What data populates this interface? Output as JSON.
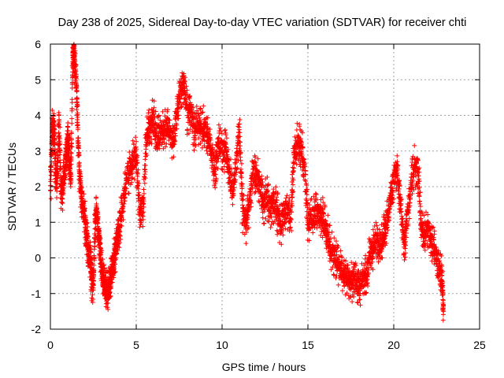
{
  "chart_data": {
    "type": "scatter",
    "title": "Day 238 of 2025, Sidereal Day-to-day VTEC variation (SDTVAR) for receiver chti",
    "xlabel": "GPS time / hours",
    "ylabel": "SDTVAR / TECUs",
    "xlim": [
      0,
      25
    ],
    "ylim": [
      -2,
      6
    ],
    "xticks": [
      "0",
      "5",
      "10",
      "15",
      "20",
      "25"
    ],
    "yticks": [
      "-2",
      "-1",
      "0",
      "1",
      "2",
      "3",
      "4",
      "5",
      "6"
    ],
    "grid": true,
    "marker": "+",
    "series": [
      {
        "name": "SDTVAR",
        "color": "#ff0000",
        "x": [
          0.0,
          0.1,
          0.15,
          0.2,
          0.3,
          0.4,
          0.5,
          0.6,
          0.7,
          0.8,
          0.9,
          1.0,
          1.05,
          1.1,
          1.2,
          1.3,
          1.35,
          1.4,
          1.5,
          1.6,
          1.7,
          1.8,
          1.9,
          2.0,
          2.1,
          2.2,
          2.3,
          2.4,
          2.5,
          2.6,
          2.7,
          2.8,
          2.9,
          3.0,
          3.1,
          3.2,
          3.3,
          3.4,
          3.5,
          3.6,
          3.7,
          3.8,
          3.9,
          4.0,
          4.2,
          4.4,
          4.6,
          4.8,
          5.0,
          5.2,
          5.4,
          5.6,
          5.8,
          6.0,
          6.2,
          6.4,
          6.6,
          6.8,
          7.0,
          7.2,
          7.4,
          7.6,
          7.8,
          8.0,
          8.2,
          8.4,
          8.6,
          8.8,
          9.0,
          9.2,
          9.4,
          9.6,
          9.8,
          10.0,
          10.2,
          10.4,
          10.6,
          10.8,
          11.0,
          11.2,
          11.4,
          11.6,
          11.8,
          12.0,
          12.2,
          12.4,
          12.6,
          12.8,
          13.0,
          13.2,
          13.4,
          13.6,
          13.8,
          14.0,
          14.2,
          14.4,
          14.6,
          14.8,
          15.0,
          15.2,
          15.4,
          15.6,
          15.8,
          16.0,
          16.2,
          16.4,
          16.6,
          16.8,
          17.0,
          17.2,
          17.4,
          17.6,
          17.8,
          18.0,
          18.2,
          18.4,
          18.6,
          18.8,
          19.0,
          19.2,
          19.4,
          19.6,
          19.8,
          20.0,
          20.2,
          20.4,
          20.6,
          20.8,
          21.0,
          21.2,
          21.4,
          21.6,
          21.8,
          22.0,
          22.2,
          22.4,
          22.6,
          22.8,
          22.9
        ],
        "y": [
          1.9,
          3.5,
          3.6,
          3.7,
          2.4,
          2.1,
          4.0,
          2.0,
          1.9,
          2.3,
          2.9,
          3.2,
          3.3,
          2.6,
          2.2,
          5.5,
          5.9,
          5.7,
          4.9,
          3.6,
          2.2,
          1.8,
          1.4,
          1.2,
          0.6,
          0.3,
          0.0,
          -0.5,
          -0.9,
          1.0,
          1.3,
          0.8,
          0.2,
          -0.4,
          -0.7,
          -0.8,
          -1.0,
          -0.9,
          -0.6,
          -0.3,
          0.0,
          0.2,
          0.5,
          0.8,
          1.5,
          2.1,
          2.5,
          2.7,
          2.9,
          1.3,
          1.5,
          3.4,
          3.7,
          3.9,
          3.4,
          3.5,
          3.6,
          3.7,
          3.4,
          3.3,
          4.2,
          4.8,
          4.9,
          4.0,
          4.1,
          3.5,
          3.8,
          3.6,
          3.7,
          3.4,
          2.9,
          2.5,
          3.2,
          3.0,
          3.0,
          2.5,
          1.8,
          2.5,
          3.6,
          1.3,
          0.9,
          1.6,
          2.4,
          2.3,
          2.1,
          1.5,
          1.7,
          1.4,
          1.6,
          1.3,
          0.9,
          1.2,
          1.4,
          1.1,
          2.9,
          3.2,
          3.1,
          2.6,
          1.0,
          1.1,
          1.2,
          1.3,
          1.2,
          0.9,
          0.5,
          0.2,
          0.0,
          -0.2,
          -0.4,
          -0.5,
          -0.6,
          -0.7,
          -0.7,
          -0.8,
          -0.6,
          -0.5,
          0.0,
          0.3,
          0.5,
          0.2,
          0.6,
          1.0,
          1.5,
          2.2,
          2.4,
          1.6,
          0.3,
          1.3,
          2.0,
          2.6,
          2.5,
          1.0,
          0.6,
          0.9,
          0.4,
          0.2,
          -0.3,
          -0.5,
          -1.5
        ],
        "noisy": true
      }
    ]
  }
}
